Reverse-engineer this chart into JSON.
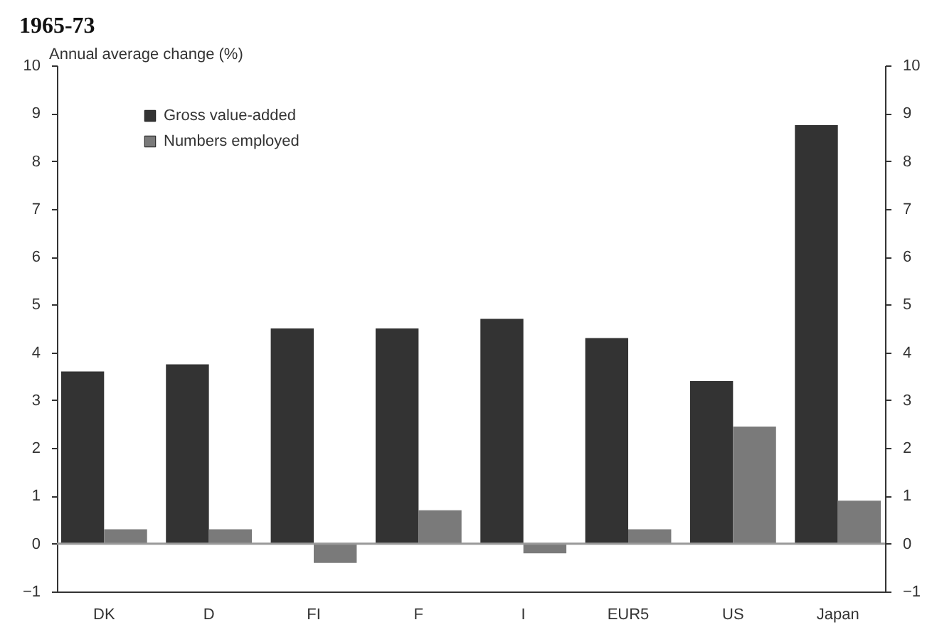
{
  "chart_data": {
    "type": "bar",
    "title": "1965-73",
    "ylabel": "Annual average change (%)",
    "categories": [
      "DK",
      "D",
      "FI",
      "F",
      "I",
      "EUR5",
      "US",
      "Japan"
    ],
    "series": [
      {
        "name": "Gross value-added",
        "color": "#333333",
        "values": [
          3.6,
          3.75,
          4.5,
          4.5,
          4.7,
          4.3,
          3.4,
          8.75
        ]
      },
      {
        "name": "Numbers employed",
        "color": "#7a7a7a",
        "values": [
          0.3,
          0.3,
          -0.4,
          0.7,
          -0.2,
          0.3,
          2.45,
          0.9
        ]
      }
    ],
    "ylim": [
      -1,
      10
    ],
    "yticks": [
      -1,
      0,
      1,
      2,
      3,
      4,
      5,
      6,
      7,
      8,
      9,
      10
    ],
    "y2lim": [
      -1,
      10
    ],
    "y2ticks": [
      -1,
      0,
      1,
      2,
      3,
      4,
      5,
      6,
      7,
      8,
      9,
      10
    ],
    "ref_lines": [
      {
        "axis": "y",
        "value": 0,
        "color": "#999999"
      }
    ],
    "grid": false,
    "legend": "top left"
  }
}
